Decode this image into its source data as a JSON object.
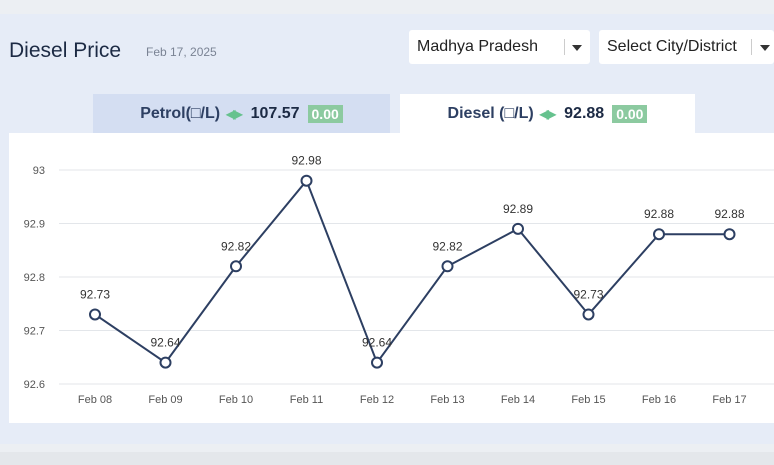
{
  "header": {
    "title": "Diesel Price",
    "date": "Feb 17, 2025"
  },
  "filters": {
    "state": "Madhya Pradesh",
    "city": "Select City/District"
  },
  "tabs": {
    "petrol": {
      "label": "Petrol(□/L)",
      "price": "107.57",
      "change": "0.00"
    },
    "diesel": {
      "label": "Diesel (□/L)",
      "price": "92.88",
      "change": "0.00"
    }
  },
  "colors": {
    "line": "#2d3f62",
    "grid": "#e3e6ea",
    "change_badge": "#8ccaa0"
  },
  "chart_data": {
    "type": "line",
    "categories": [
      "Feb 08",
      "Feb 09",
      "Feb 10",
      "Feb 11",
      "Feb 12",
      "Feb 13",
      "Feb 14",
      "Feb 15",
      "Feb 16",
      "Feb 17"
    ],
    "values": [
      92.73,
      92.64,
      92.82,
      92.98,
      92.64,
      92.82,
      92.89,
      92.73,
      92.88,
      92.88
    ],
    "data_labels": [
      "92.73",
      "92.64",
      "92.82",
      "92.98",
      "92.64",
      "92.82",
      "92.89",
      "92.73",
      "92.88",
      "92.88"
    ],
    "yticks": [
      "92.6",
      "92.7",
      "92.8",
      "92.9",
      "93"
    ],
    "ylim": [
      92.6,
      93.0
    ],
    "grid": true,
    "title": "",
    "xlabel": "",
    "ylabel": ""
  }
}
